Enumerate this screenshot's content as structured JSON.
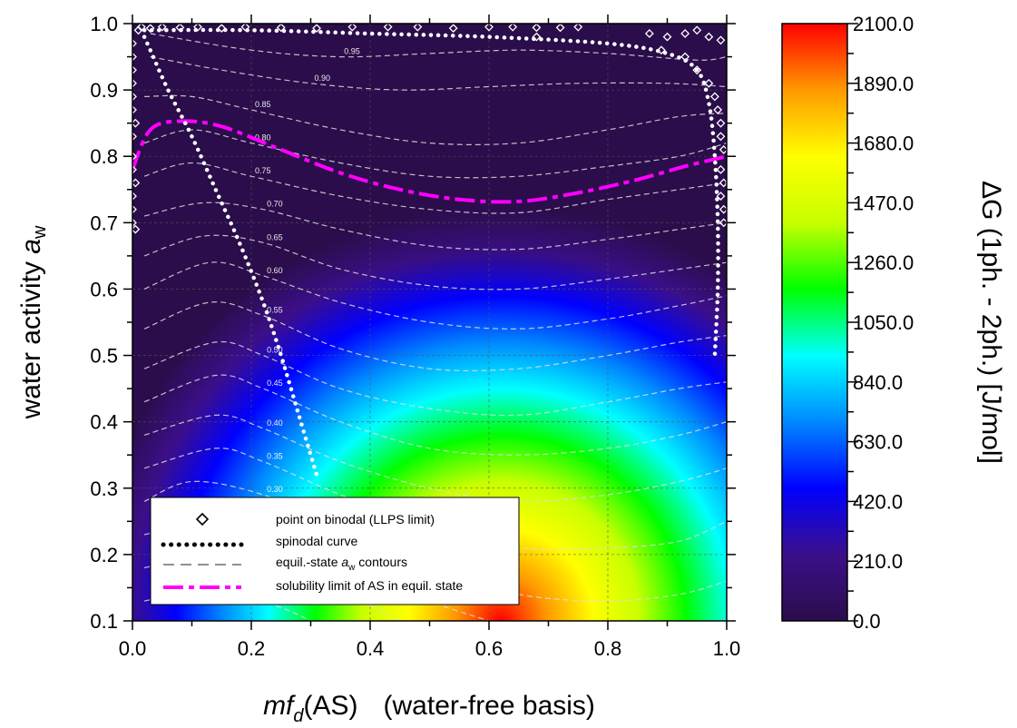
{
  "chart_data": {
    "type": "heatmap",
    "xlabel": {
      "italic": "mf",
      "sub": "d",
      "rest": "(AS)",
      "suffix": "(water-free basis)"
    },
    "ylabel": {
      "text": "water activity ",
      "italic": "a",
      "sub": "w"
    },
    "colorbar_label": "ΔG (1ph. - 2ph.) [J/mol]",
    "xlim": [
      0.0,
      1.0
    ],
    "ylim": [
      0.1,
      1.0
    ],
    "x_ticks": [
      "0.0",
      "0.2",
      "0.4",
      "0.6",
      "0.8",
      "1.0"
    ],
    "y_ticks": [
      "0.1",
      "0.2",
      "0.3",
      "0.4",
      "0.5",
      "0.6",
      "0.7",
      "0.8",
      "0.9",
      "1.0"
    ],
    "colorbar_ticks": [
      "0.0",
      "210.0",
      "420.0",
      "630.0",
      "840.0",
      "1050.0",
      "1260.0",
      "1470.0",
      "1680.0",
      "1890.0",
      "2100.0"
    ],
    "colorbar_range": [
      0,
      2100
    ],
    "grid": true,
    "colormap": [
      "#2a0d4a",
      "#3b0f8a",
      "#0000ff",
      "#0088ff",
      "#00ffff",
      "#00ff00",
      "#c8ff00",
      "#ffff00",
      "#ff9900",
      "#ff0000"
    ],
    "heatmap_peak": {
      "x": 0.62,
      "y": 0.1,
      "value": 2100
    },
    "spinodal_curve": {
      "left_branch": [
        [
          0.02,
          0.98
        ],
        [
          0.03,
          0.96
        ],
        [
          0.06,
          0.9
        ],
        [
          0.1,
          0.83
        ],
        [
          0.14,
          0.75
        ],
        [
          0.18,
          0.67
        ],
        [
          0.22,
          0.58
        ],
        [
          0.25,
          0.5
        ],
        [
          0.28,
          0.41
        ],
        [
          0.31,
          0.32
        ]
      ],
      "top_branch": [
        [
          0.02,
          0.99
        ],
        [
          0.2,
          0.99
        ],
        [
          0.4,
          0.985
        ],
        [
          0.6,
          0.98
        ],
        [
          0.8,
          0.97
        ],
        [
          0.9,
          0.955
        ],
        [
          0.95,
          0.93
        ],
        [
          0.97,
          0.88
        ],
        [
          0.98,
          0.8
        ],
        [
          0.985,
          0.7
        ],
        [
          0.985,
          0.6
        ],
        [
          0.98,
          0.5
        ]
      ]
    },
    "binodal_points": [
      [
        0.01,
        0.99
      ],
      [
        0.015,
        0.995
      ],
      [
        0.03,
        0.993
      ],
      [
        0.05,
        0.995
      ],
      [
        0.08,
        0.994
      ],
      [
        0.11,
        0.995
      ],
      [
        0.15,
        0.993
      ],
      [
        0.19,
        0.995
      ],
      [
        0.25,
        0.994
      ],
      [
        0.31,
        0.993
      ],
      [
        0.37,
        0.995
      ],
      [
        0.43,
        0.995
      ],
      [
        0.48,
        0.995
      ],
      [
        0.54,
        0.993
      ],
      [
        0.6,
        0.995
      ],
      [
        0.64,
        0.995
      ],
      [
        0.68,
        0.994
      ],
      [
        0.72,
        0.994
      ],
      [
        0.75,
        0.995
      ],
      [
        0.68,
        0.98
      ],
      [
        0.87,
        0.985
      ],
      [
        0.9,
        0.98
      ],
      [
        0.93,
        0.985
      ],
      [
        0.95,
        0.99
      ],
      [
        0.97,
        0.98
      ],
      [
        0.99,
        0.975
      ],
      [
        0.0,
        0.97
      ],
      [
        0.0,
        0.95
      ],
      [
        0.0,
        0.93
      ],
      [
        0.0,
        0.91
      ],
      [
        0.0,
        0.89
      ],
      [
        0.0,
        0.87
      ],
      [
        0.005,
        0.85
      ],
      [
        0.0,
        0.83
      ],
      [
        0.0,
        0.8
      ],
      [
        0.0,
        0.78
      ],
      [
        0.005,
        0.76
      ],
      [
        0.0,
        0.74
      ],
      [
        0.0,
        0.72
      ],
      [
        0.0,
        0.7
      ],
      [
        0.005,
        0.69
      ],
      [
        0.97,
        0.91
      ],
      [
        0.98,
        0.89
      ],
      [
        0.985,
        0.87
      ],
      [
        0.99,
        0.85
      ],
      [
        0.99,
        0.83
      ],
      [
        0.995,
        0.81
      ],
      [
        0.99,
        0.78
      ],
      [
        0.995,
        0.76
      ],
      [
        0.99,
        0.74
      ],
      [
        0.995,
        0.72
      ],
      [
        0.995,
        0.7
      ],
      [
        0.95,
        0.93
      ],
      [
        0.93,
        0.95
      ],
      [
        0.89,
        0.96
      ]
    ],
    "solubility_limit": [
      [
        0.0,
        0.78
      ],
      [
        0.03,
        0.84
      ],
      [
        0.08,
        0.853
      ],
      [
        0.15,
        0.845
      ],
      [
        0.25,
        0.81
      ],
      [
        0.35,
        0.775
      ],
      [
        0.45,
        0.75
      ],
      [
        0.55,
        0.735
      ],
      [
        0.65,
        0.732
      ],
      [
        0.75,
        0.745
      ],
      [
        0.85,
        0.765
      ],
      [
        0.93,
        0.785
      ],
      [
        1.0,
        0.8
      ]
    ],
    "contours": [
      {
        "label": "0.95",
        "pts": [
          [
            0.03,
            0.985
          ],
          [
            0.2,
            0.96
          ],
          [
            0.35,
            0.95
          ],
          [
            0.5,
            0.955
          ],
          [
            0.65,
            0.96
          ],
          [
            0.8,
            0.955
          ],
          [
            0.95,
            0.945
          ],
          [
            1.0,
            0.95
          ]
        ]
      },
      {
        "label": "0.90",
        "pts": [
          [
            0.03,
            0.95
          ],
          [
            0.15,
            0.93
          ],
          [
            0.3,
            0.91
          ],
          [
            0.45,
            0.9
          ],
          [
            0.6,
            0.905
          ],
          [
            0.75,
            0.91
          ],
          [
            0.9,
            0.91
          ],
          [
            1.0,
            0.905
          ]
        ]
      },
      {
        "label": "0.85",
        "pts": [
          [
            0.02,
            0.89
          ],
          [
            0.1,
            0.89
          ],
          [
            0.2,
            0.87
          ],
          [
            0.35,
            0.84
          ],
          [
            0.5,
            0.82
          ],
          [
            0.65,
            0.82
          ],
          [
            0.8,
            0.84
          ],
          [
            0.92,
            0.86
          ],
          [
            1.0,
            0.865
          ]
        ]
      },
      {
        "label": "0.80",
        "pts": [
          [
            0.02,
            0.82
          ],
          [
            0.1,
            0.84
          ],
          [
            0.2,
            0.82
          ],
          [
            0.35,
            0.79
          ],
          [
            0.5,
            0.77
          ],
          [
            0.65,
            0.77
          ],
          [
            0.8,
            0.785
          ],
          [
            0.92,
            0.8
          ],
          [
            1.0,
            0.82
          ]
        ]
      },
      {
        "label": "0.75",
        "pts": [
          [
            0.02,
            0.77
          ],
          [
            0.1,
            0.79
          ],
          [
            0.2,
            0.77
          ],
          [
            0.35,
            0.74
          ],
          [
            0.5,
            0.72
          ],
          [
            0.65,
            0.715
          ],
          [
            0.8,
            0.735
          ],
          [
            0.92,
            0.75
          ],
          [
            1.0,
            0.76
          ]
        ]
      },
      {
        "label": "0.70",
        "pts": [
          [
            0.02,
            0.71
          ],
          [
            0.12,
            0.73
          ],
          [
            0.22,
            0.72
          ],
          [
            0.35,
            0.69
          ],
          [
            0.5,
            0.665
          ],
          [
            0.65,
            0.66
          ],
          [
            0.8,
            0.675
          ],
          [
            0.92,
            0.69
          ],
          [
            1.0,
            0.7
          ]
        ]
      },
      {
        "label": "0.65",
        "pts": [
          [
            0.02,
            0.65
          ],
          [
            0.12,
            0.68
          ],
          [
            0.22,
            0.67
          ],
          [
            0.35,
            0.63
          ],
          [
            0.5,
            0.605
          ],
          [
            0.65,
            0.6
          ],
          [
            0.8,
            0.615
          ],
          [
            0.92,
            0.63
          ],
          [
            1.0,
            0.64
          ]
        ]
      },
      {
        "label": "0.60",
        "pts": [
          [
            0.02,
            0.6
          ],
          [
            0.13,
            0.64
          ],
          [
            0.22,
            0.62
          ],
          [
            0.35,
            0.58
          ],
          [
            0.5,
            0.55
          ],
          [
            0.65,
            0.54
          ],
          [
            0.8,
            0.555
          ],
          [
            0.92,
            0.575
          ],
          [
            1.0,
            0.59
          ]
        ]
      },
      {
        "label": "0.55",
        "pts": [
          [
            0.02,
            0.54
          ],
          [
            0.13,
            0.58
          ],
          [
            0.22,
            0.56
          ],
          [
            0.35,
            0.51
          ],
          [
            0.5,
            0.48
          ],
          [
            0.65,
            0.48
          ],
          [
            0.8,
            0.5
          ],
          [
            0.92,
            0.52
          ],
          [
            1.0,
            0.53
          ]
        ]
      },
      {
        "label": "0.50",
        "pts": [
          [
            0.02,
            0.48
          ],
          [
            0.14,
            0.52
          ],
          [
            0.22,
            0.5
          ],
          [
            0.35,
            0.45
          ],
          [
            0.5,
            0.42
          ],
          [
            0.65,
            0.41
          ],
          [
            0.8,
            0.43
          ],
          [
            0.92,
            0.45
          ],
          [
            1.0,
            0.46
          ]
        ]
      },
      {
        "label": "0.45",
        "pts": [
          [
            0.02,
            0.43
          ],
          [
            0.14,
            0.47
          ],
          [
            0.22,
            0.45
          ],
          [
            0.35,
            0.4
          ],
          [
            0.5,
            0.36
          ],
          [
            0.65,
            0.35
          ],
          [
            0.8,
            0.36
          ],
          [
            0.92,
            0.38
          ],
          [
            1.0,
            0.4
          ]
        ]
      },
      {
        "label": "0.40",
        "pts": [
          [
            0.02,
            0.38
          ],
          [
            0.14,
            0.41
          ],
          [
            0.22,
            0.39
          ],
          [
            0.35,
            0.34
          ],
          [
            0.5,
            0.3
          ],
          [
            0.65,
            0.28
          ],
          [
            0.8,
            0.29
          ],
          [
            0.92,
            0.31
          ],
          [
            1.0,
            0.33
          ]
        ]
      },
      {
        "label": "0.35",
        "pts": [
          [
            0.02,
            0.33
          ],
          [
            0.14,
            0.36
          ],
          [
            0.22,
            0.34
          ],
          [
            0.35,
            0.29
          ],
          [
            0.5,
            0.24
          ],
          [
            0.65,
            0.21
          ],
          [
            0.8,
            0.21
          ],
          [
            0.92,
            0.22
          ],
          [
            1.0,
            0.25
          ]
        ]
      },
      {
        "label": "0.30",
        "pts": [
          [
            0.02,
            0.28
          ],
          [
            0.1,
            0.31
          ],
          [
            0.22,
            0.29
          ],
          [
            0.35,
            0.24
          ],
          [
            0.5,
            0.18
          ],
          [
            0.65,
            0.14
          ],
          [
            0.8,
            0.13
          ],
          [
            0.92,
            0.14
          ],
          [
            1.0,
            0.16
          ]
        ]
      },
      {
        "label": "",
        "pts": [
          [
            0.02,
            0.23
          ],
          [
            0.14,
            0.25
          ],
          [
            0.25,
            0.23
          ],
          [
            0.38,
            0.18
          ],
          [
            0.5,
            0.13
          ],
          [
            0.6,
            0.1
          ]
        ]
      },
      {
        "label": "",
        "pts": [
          [
            0.02,
            0.18
          ],
          [
            0.14,
            0.2
          ],
          [
            0.25,
            0.17
          ],
          [
            0.38,
            0.13
          ],
          [
            0.45,
            0.1
          ]
        ]
      },
      {
        "label": "",
        "pts": [
          [
            0.02,
            0.13
          ],
          [
            0.14,
            0.15
          ],
          [
            0.25,
            0.12
          ],
          [
            0.3,
            0.1
          ]
        ]
      }
    ],
    "legend": {
      "entries": [
        {
          "label": "point on binodal (LLPS limit)"
        },
        {
          "label": "spinodal curve"
        },
        {
          "label_prefix": "equil.-state ",
          "label_italic": "a",
          "label_sub": "w",
          "label_suffix": " contours"
        },
        {
          "label": "solubility limit of AS in equil. state"
        }
      ],
      "position": "bottom-left"
    },
    "colors": {
      "spinodal": "#ffffff",
      "binodal": "#ffffff",
      "contour": "#dddddd",
      "solubility": "#ff00ff",
      "legend_contour": "#909090",
      "legend_spinodal": "#000000"
    }
  }
}
